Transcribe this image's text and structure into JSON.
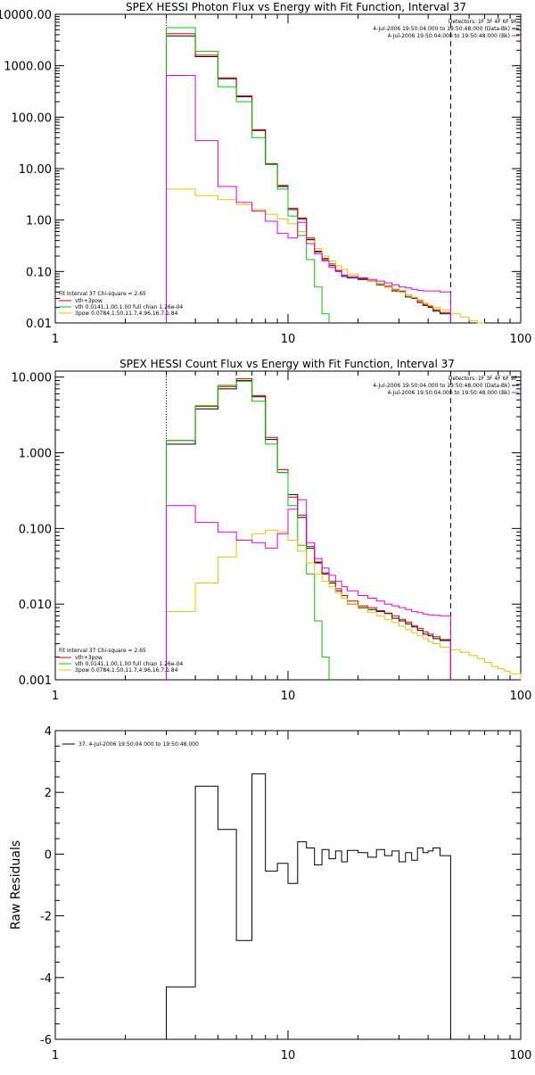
{
  "chart_data": [
    {
      "type": "line",
      "title": "SPEX HESSI Photon Flux vs Energy with Fit Function, Interval 37",
      "xscale": "log",
      "yscale": "log",
      "xlim": [
        1,
        100
      ],
      "ylim": [
        0.01,
        10000
      ],
      "xticks": [
        1,
        10,
        100
      ],
      "xtick_labels": [
        "1",
        "10",
        "100"
      ],
      "yticks": [
        0.01,
        0.1,
        1,
        10,
        100,
        1000,
        10000
      ],
      "ytick_labels": [
        "0.01",
        "0.10",
        "1.00",
        "10.00",
        "100.00",
        "1000.00",
        "10000.00"
      ],
      "legend_top_right": [
        "Detectors: 1F 3F 4F 6F 9F",
        "4-Jul-2006 19:50:04.000 to 19:50:48.000 (Data-Bk)",
        "4-Jul-2006 19:50:04.000 to 19:50:48.000 (Bk)"
      ],
      "legend_bottom_left": [
        "Fit Interval 37    Chi-square = 2.65",
        "vth+3pow",
        "vth 0.0141,1.00,1.00  full chian 1.26e-04",
        "3pow 0.0784,1.50,11.7,4.96,16.7,1.84"
      ],
      "vlines": [
        {
          "x": 3,
          "style": "dotted"
        },
        {
          "x": 50,
          "style": "dashed"
        }
      ],
      "series": [
        {
          "name": "4-Jul-2006 19:50:04.000 to 19:50:48.000 (Data-Bk)",
          "color": "#000000",
          "edges": [
            3,
            4,
            5,
            6,
            7,
            8,
            9,
            10,
            11,
            12,
            13,
            14,
            15,
            16,
            17,
            18,
            20,
            22,
            24,
            26,
            28,
            30,
            32,
            34,
            36,
            38,
            40,
            42,
            45,
            50
          ],
          "values": [
            3800,
            1500,
            560,
            250,
            55,
            12,
            4.5,
            1.6,
            1.05,
            0.42,
            0.24,
            0.17,
            0.13,
            0.1,
            0.08,
            0.075,
            0.07,
            0.065,
            0.055,
            0.05,
            0.042,
            0.04,
            0.032,
            0.03,
            0.025,
            0.022,
            0.02,
            0.017,
            0.015
          ]
        },
        {
          "name": "vth+3pow",
          "color": "#d40000",
          "edges": [
            3,
            4,
            5,
            6,
            7,
            8,
            9,
            10,
            11,
            12,
            13,
            14,
            15,
            16,
            17,
            18,
            20,
            22,
            24,
            26,
            28,
            30,
            32,
            34,
            36,
            38,
            40,
            42,
            45,
            50
          ],
          "values": [
            4200,
            1600,
            580,
            260,
            57,
            12.5,
            4.7,
            1.7,
            1.1,
            0.45,
            0.25,
            0.18,
            0.14,
            0.105,
            0.085,
            0.08,
            0.073,
            0.066,
            0.058,
            0.052,
            0.045,
            0.042,
            0.035,
            0.031,
            0.027,
            0.023,
            0.021,
            0.018,
            0.016
          ]
        },
        {
          "name": "vth",
          "color": "#00c800",
          "edges": [
            3,
            4,
            5,
            6,
            7,
            8,
            9,
            10,
            11,
            12,
            13,
            14,
            15
          ],
          "values": [
            5500,
            1900,
            390,
            200,
            40,
            12,
            4,
            1.2,
            0.5,
            0.17,
            0.05,
            0.015
          ]
        },
        {
          "name": "3pow",
          "color": "#e6c200",
          "edges": [
            3,
            4,
            5,
            6,
            7,
            8,
            9,
            10,
            11,
            12,
            13,
            14,
            15,
            16,
            17,
            18,
            20,
            22,
            24,
            26,
            28,
            30,
            32,
            34,
            36,
            38,
            40,
            42,
            45,
            50,
            55,
            60,
            65,
            70
          ],
          "values": [
            4,
            3,
            2.5,
            2,
            1.6,
            1.3,
            1.05,
            0.85,
            0.6,
            0.4,
            0.28,
            0.2,
            0.16,
            0.13,
            0.11,
            0.09,
            0.075,
            0.065,
            0.057,
            0.05,
            0.044,
            0.04,
            0.035,
            0.031,
            0.028,
            0.025,
            0.022,
            0.02,
            0.018,
            0.015,
            0.013,
            0.011,
            0.01
          ]
        },
        {
          "name": "4-Jul-2006 19:50:04.000 to 19:50:48.000 (Bk)",
          "color": "#e000e0",
          "edges": [
            3,
            4,
            5,
            6,
            7,
            8,
            9,
            10,
            11,
            12,
            13,
            14,
            15,
            16,
            17,
            18,
            20,
            22,
            24,
            26,
            28,
            30,
            32,
            34,
            36,
            38,
            40,
            42,
            45,
            50
          ],
          "values": [
            650,
            35,
            4.5,
            2.2,
            1.5,
            0.95,
            0.55,
            0.45,
            0.9,
            0.35,
            0.22,
            0.16,
            0.12,
            0.1,
            0.085,
            0.08,
            0.075,
            0.07,
            0.065,
            0.06,
            0.055,
            0.05,
            0.048,
            0.045,
            0.043,
            0.042,
            0.042,
            0.042,
            0.04
          ]
        }
      ]
    },
    {
      "type": "line",
      "title": "SPEX HESSI Count Flux vs Energy with Fit Function, Interval 37",
      "xscale": "log",
      "yscale": "log",
      "xlim": [
        1,
        100
      ],
      "ylim": [
        0.001,
        12
      ],
      "xticks": [
        1,
        10,
        100
      ],
      "xtick_labels": [
        "1",
        "10",
        "100"
      ],
      "yticks": [
        0.001,
        0.01,
        0.1,
        1,
        10
      ],
      "ytick_labels": [
        "0.001",
        "0.010",
        "0.100",
        "1.000",
        "10.000"
      ],
      "legend_top_right": [
        "Detectors: 1F 3F 4F 6F 9F",
        "4-Jul-2006 19:50:04.000 to 19:50:48.000 (Data-Bk)",
        "4-Jul-2006 19:50:04.000 to 19:50:48.000 (Bk)"
      ],
      "legend_bottom_left": [
        "Fit Interval 37    Chi-square = 2.65",
        "vth+3pow",
        "vth 0.0141,1.00,1.00  full chian 1.26e-04",
        "3pow 0.0784,1.50,11.7,4.96,16.7,1.84"
      ],
      "vlines": [
        {
          "x": 3,
          "style": "dotted"
        },
        {
          "x": 50,
          "style": "dashed"
        }
      ],
      "series": [
        {
          "name": "4-Jul-2006 19:50:04.000 to 19:50:48.000 (Data-Bk)",
          "color": "#000000",
          "edges": [
            3,
            4,
            5,
            6,
            7,
            8,
            9,
            10,
            11,
            12,
            13,
            14,
            15,
            16,
            17,
            18,
            20,
            22,
            24,
            26,
            28,
            30,
            32,
            34,
            36,
            38,
            40,
            42,
            45,
            50
          ],
          "values": [
            1.3,
            3.8,
            7,
            9,
            5.5,
            1.5,
            0.55,
            0.28,
            0.14,
            0.055,
            0.035,
            0.025,
            0.019,
            0.015,
            0.012,
            0.01,
            0.009,
            0.0085,
            0.008,
            0.0075,
            0.0065,
            0.006,
            0.0055,
            0.005,
            0.0045,
            0.004,
            0.0038,
            0.0035,
            0.0033
          ]
        },
        {
          "name": "vth+3pow",
          "color": "#d40000",
          "edges": [
            3,
            4,
            5,
            6,
            7,
            8,
            9,
            10,
            11,
            12,
            13,
            14,
            15,
            16,
            17,
            18,
            20,
            22,
            24,
            26,
            28,
            30,
            32,
            34,
            36,
            38,
            40,
            42,
            45,
            50
          ],
          "values": [
            1.45,
            4.1,
            7.5,
            9.5,
            5.7,
            1.6,
            0.6,
            0.26,
            0.15,
            0.058,
            0.036,
            0.026,
            0.02,
            0.016,
            0.013,
            0.011,
            0.0095,
            0.009,
            0.0082,
            0.0076,
            0.007,
            0.0063,
            0.0058,
            0.0052,
            0.0048,
            0.0043,
            0.004,
            0.0037,
            0.0034
          ]
        },
        {
          "name": "vth",
          "color": "#00c800",
          "edges": [
            3,
            4,
            5,
            6,
            7,
            8,
            9,
            10,
            11,
            12,
            13,
            14,
            15
          ],
          "values": [
            1.45,
            4.2,
            7.8,
            8.8,
            4.8,
            1.3,
            0.55,
            0.2,
            0.06,
            0.025,
            0.006,
            0.002
          ]
        },
        {
          "name": "3pow",
          "color": "#e6c200",
          "edges": [
            3,
            4,
            5,
            6,
            7,
            8,
            9,
            10,
            11,
            12,
            13,
            14,
            15,
            16,
            17,
            18,
            20,
            22,
            24,
            26,
            28,
            30,
            32,
            34,
            36,
            38,
            40,
            42,
            45,
            50,
            55,
            60,
            65,
            70,
            75,
            80,
            85,
            90,
            100
          ],
          "values": [
            0.008,
            0.019,
            0.042,
            0.07,
            0.085,
            0.095,
            0.09,
            0.07,
            0.05,
            0.035,
            0.025,
            0.02,
            0.017,
            0.014,
            0.012,
            0.01,
            0.0088,
            0.0078,
            0.007,
            0.0063,
            0.0057,
            0.0051,
            0.0046,
            0.0042,
            0.0038,
            0.0035,
            0.0032,
            0.003,
            0.0027,
            0.0025,
            0.0023,
            0.0021,
            0.0019,
            0.0017,
            0.0015,
            0.0014,
            0.0013,
            0.0012
          ]
        },
        {
          "name": "4-Jul-2006 19:50:04.000 to 19:50:48.000 (Bk)",
          "color": "#e000e0",
          "edges": [
            3,
            4,
            5,
            6,
            7,
            8,
            9,
            10,
            11,
            12,
            13,
            14,
            15,
            16,
            17,
            18,
            20,
            22,
            24,
            26,
            28,
            30,
            32,
            34,
            36,
            38,
            40,
            42,
            45,
            50
          ],
          "values": [
            0.2,
            0.12,
            0.09,
            0.07,
            0.065,
            0.055,
            0.085,
            0.18,
            0.24,
            0.065,
            0.04,
            0.03,
            0.024,
            0.02,
            0.017,
            0.015,
            0.013,
            0.012,
            0.011,
            0.01,
            0.0095,
            0.009,
            0.0085,
            0.008,
            0.0077,
            0.0074,
            0.0072,
            0.0071,
            0.007
          ]
        }
      ]
    },
    {
      "type": "line",
      "title": "",
      "ylabel": "Raw Residuals",
      "xscale": "log",
      "yscale": "linear",
      "xlim": [
        1,
        100
      ],
      "ylim": [
        -6,
        4
      ],
      "xticks": [
        1,
        10,
        100
      ],
      "xtick_labels": [
        "1",
        "10",
        "100"
      ],
      "yticks": [
        -6,
        -4,
        -2,
        0,
        2,
        4
      ],
      "ytick_labels": [
        "-6",
        "-4",
        "-2",
        "0",
        "2",
        "4"
      ],
      "legend": [
        "37.  4-Jul-2006 19:50:04.000 to 19:50:48.000"
      ],
      "series": [
        {
          "name": "37.  4-Jul-2006 19:50:04.000 to 19:50:48.000",
          "color": "#000000",
          "edges": [
            3,
            4,
            5,
            6,
            7,
            8,
            9,
            10,
            11,
            12,
            13,
            14,
            15,
            16,
            17,
            18,
            20,
            22,
            24,
            26,
            28,
            30,
            32,
            34,
            36,
            38,
            40,
            42,
            45,
            50
          ],
          "values": [
            -4.3,
            2.2,
            0.8,
            -2.8,
            2.6,
            -0.55,
            -0.3,
            -0.95,
            0.4,
            0.2,
            -0.35,
            0.15,
            -0.15,
            0.1,
            -0.25,
            0.12,
            0.05,
            -0.1,
            0.15,
            -0.05,
            0.1,
            -0.25,
            0.05,
            -0.2,
            0.2,
            0.05,
            0.1,
            0.2,
            -0.05
          ]
        }
      ]
    }
  ]
}
